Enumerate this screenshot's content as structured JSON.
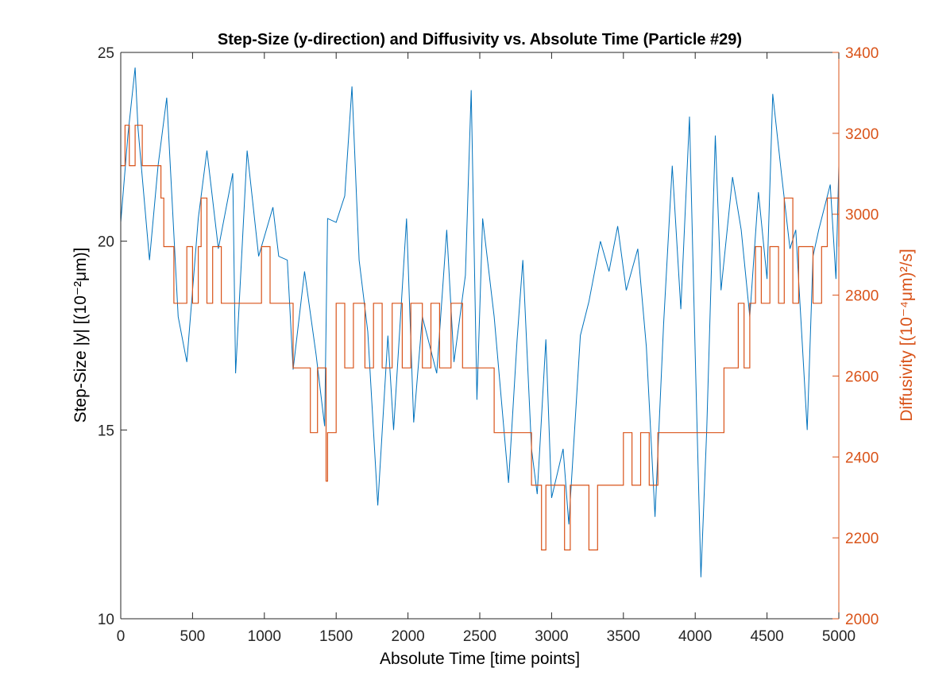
{
  "chart_data": {
    "type": "line",
    "title": "Step-Size (y-direction) and Diffusivity vs. Absolute Time (Particle #29)",
    "xlabel": "Absolute Time [time points]",
    "ylabel_left": "Step-Size |y| [(10⁻²μm)]",
    "ylabel_right": "Diffusivity [(10⁻⁴μm)²/s]",
    "xlim": [
      0,
      5000
    ],
    "ylim_left": [
      10,
      25
    ],
    "ylim_right": [
      2000,
      3400
    ],
    "xticks": [
      "0",
      "500",
      "1000",
      "1500",
      "2000",
      "2500",
      "3000",
      "3500",
      "4000",
      "4500",
      "5000"
    ],
    "yticks_left": [
      "10",
      "15",
      "20",
      "25"
    ],
    "yticks_right": [
      "2000",
      "2200",
      "2400",
      "2600",
      "2800",
      "3000",
      "3200",
      "3400"
    ],
    "grid": false,
    "colors": {
      "step": "#0072BD",
      "diff": "#D95319",
      "axis": "#262626"
    },
    "series": [
      {
        "axis": "left",
        "x": [
          0,
          50,
          100,
          120,
          200,
          260,
          320,
          400,
          460,
          540,
          600,
          680,
          780,
          800,
          880,
          960,
          1060,
          1100,
          1160,
          1200,
          1280,
          1360,
          1420,
          1440,
          1500,
          1560,
          1610,
          1660,
          1720,
          1790,
          1860,
          1900,
          1990,
          2040,
          2100,
          2200,
          2270,
          2320,
          2400,
          2440,
          2480,
          2520,
          2600,
          2700,
          2760,
          2800,
          2860,
          2900,
          2960,
          3000,
          3080,
          3120,
          3200,
          3260,
          3340,
          3400,
          3460,
          3520,
          3600,
          3660,
          3720,
          3780,
          3840,
          3900,
          3960,
          4000,
          4040,
          4080,
          4140,
          4180,
          4260,
          4320,
          4380,
          4440,
          4500,
          4540,
          4600,
          4660,
          4700,
          4780,
          4820,
          4860,
          4940,
          4980,
          5000
        ],
        "y": [
          20.5,
          22.8,
          24.6,
          23.0,
          19.5,
          22.0,
          23.8,
          18.0,
          16.8,
          20.6,
          22.4,
          19.8,
          21.8,
          16.5,
          22.4,
          19.6,
          20.9,
          19.6,
          19.5,
          16.6,
          19.2,
          17.0,
          15.1,
          20.6,
          20.5,
          21.2,
          24.1,
          19.5,
          17.6,
          13.0,
          17.5,
          15.0,
          20.6,
          15.2,
          18.0,
          16.5,
          20.3,
          16.8,
          19.1,
          24.0,
          15.8,
          20.6,
          18.0,
          13.6,
          17.4,
          19.5,
          14.5,
          13.3,
          17.4,
          13.2,
          14.5,
          12.5,
          17.5,
          18.4,
          20.0,
          19.2,
          20.4,
          18.7,
          19.8,
          17.2,
          12.7,
          17.8,
          22.0,
          18.2,
          23.3,
          17.0,
          11.1,
          15.0,
          22.8,
          18.7,
          21.7,
          20.3,
          18.0,
          21.3,
          19.0,
          23.9,
          21.8,
          19.8,
          20.3,
          15.0,
          19.6,
          20.3,
          21.5,
          19.0,
          22.0
        ]
      },
      {
        "axis": "right",
        "x": [
          0,
          30,
          60,
          100,
          150,
          200,
          240,
          280,
          300,
          330,
          370,
          420,
          460,
          500,
          540,
          560,
          600,
          640,
          700,
          780,
          860,
          920,
          980,
          1040,
          1090,
          1140,
          1200,
          1260,
          1320,
          1370,
          1430,
          1440,
          1500,
          1560,
          1620,
          1700,
          1760,
          1820,
          1890,
          1960,
          2020,
          2100,
          2160,
          2220,
          2300,
          2380,
          2440,
          2480,
          2560,
          2600,
          2640,
          2700,
          2780,
          2860,
          2900,
          2930,
          2960,
          3000,
          3070,
          3090,
          3130,
          3220,
          3260,
          3320,
          3440,
          3500,
          3560,
          3620,
          3680,
          3740,
          3800,
          3900,
          4000,
          4140,
          4200,
          4260,
          4300,
          4340,
          4380,
          4420,
          4460,
          4520,
          4580,
          4620,
          4680,
          4720,
          4760,
          4820,
          4880,
          4920,
          5000
        ],
        "y": [
          3120,
          3220,
          3120,
          3220,
          3120,
          3120,
          3120,
          3040,
          2920,
          2920,
          2780,
          2780,
          2920,
          2780,
          2920,
          3040,
          2780,
          2920,
          2780,
          2780,
          2780,
          2780,
          2920,
          2780,
          2780,
          2780,
          2620,
          2620,
          2460,
          2620,
          2340,
          2460,
          2780,
          2620,
          2780,
          2620,
          2780,
          2620,
          2780,
          2620,
          2780,
          2620,
          2780,
          2620,
          2780,
          2620,
          2620,
          2620,
          2620,
          2460,
          2460,
          2460,
          2460,
          2330,
          2330,
          2170,
          2330,
          2330,
          2330,
          2170,
          2330,
          2330,
          2170,
          2330,
          2330,
          2460,
          2330,
          2460,
          2330,
          2460,
          2460,
          2460,
          2460,
          2460,
          2620,
          2620,
          2780,
          2620,
          2780,
          2920,
          2780,
          2920,
          2780,
          3040,
          2780,
          2920,
          2920,
          2780,
          2920,
          3040,
          2920
        ]
      }
    ]
  }
}
